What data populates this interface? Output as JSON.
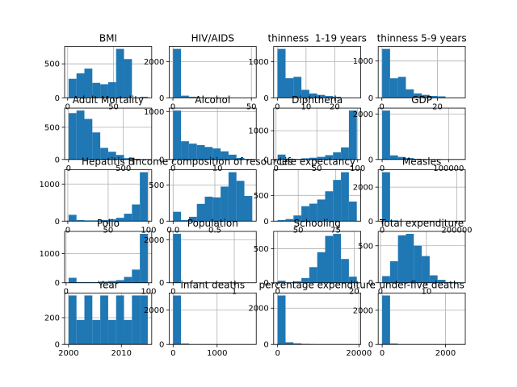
{
  "chart_data": [
    {
      "type": "histogram",
      "title": "BMI",
      "bins": [
        1,
        9.63,
        18.26,
        26.89,
        35.52,
        44.15,
        52.78,
        61.41,
        70.04,
        78.67,
        87.3
      ],
      "values": [
        280,
        360,
        430,
        220,
        200,
        230,
        720,
        570,
        5,
        15
      ],
      "color": "#1f77b4",
      "xlim": [
        -3.3,
        91.6
      ],
      "ylim": [
        0,
        756
      ],
      "xticks": [
        0,
        50
      ],
      "yticks": [
        0,
        500
      ],
      "grid": true
    },
    {
      "type": "histogram",
      "title": "HIV/AIDS",
      "bins": [
        0.1,
        5.15,
        10.2,
        15.25,
        20.3,
        25.35,
        30.4,
        35.45,
        40.5,
        45.55,
        50.6
      ],
      "values": [
        2700,
        120,
        60,
        30,
        20,
        10,
        5,
        5,
        3,
        2
      ],
      "color": "#1f77b4",
      "xlim": [
        -2.4,
        53.1
      ],
      "ylim": [
        0,
        2835
      ],
      "xticks": [
        0,
        50
      ],
      "yticks": [
        0,
        2000
      ],
      "grid": true
    },
    {
      "type": "histogram",
      "title": "thinness  1-19 years",
      "bins": [
        0.1,
        2.86,
        5.62,
        8.38,
        11.14,
        13.9,
        16.66,
        19.42,
        22.18,
        24.94,
        27.7
      ],
      "values": [
        1350,
        540,
        580,
        220,
        120,
        80,
        50,
        30,
        5,
        5
      ],
      "color": "#1f77b4",
      "xlim": [
        -1.28,
        29.08
      ],
      "ylim": [
        0,
        1418
      ],
      "xticks": [
        0,
        10,
        20
      ],
      "yticks": [
        0,
        1000
      ],
      "grid": true
    },
    {
      "type": "histogram",
      "title": "thinness 5-9 years",
      "bins": [
        0.1,
        2.95,
        5.8,
        8.65,
        11.5,
        14.35,
        17.2,
        20.05,
        22.9,
        25.75,
        28.6
      ],
      "values": [
        1330,
        530,
        570,
        230,
        120,
        80,
        50,
        40,
        5,
        5
      ],
      "color": "#1f77b4",
      "xlim": [
        -1.33,
        30.03
      ],
      "ylim": [
        0,
        1397
      ],
      "xticks": [
        0,
        20
      ],
      "yticks": [
        0,
        1000
      ],
      "grid": true
    },
    {
      "type": "histogram",
      "title": "Adult Mortality",
      "bins": [
        1,
        73.2,
        145.4,
        217.6,
        289.8,
        362,
        434.2,
        506.4,
        578.6,
        650.8,
        723
      ],
      "values": [
        720,
        760,
        630,
        420,
        180,
        120,
        70,
        20,
        10,
        5
      ],
      "color": "#1f77b4",
      "xlim": [
        -35.1,
        759.1
      ],
      "ylim": [
        0,
        798
      ],
      "xticks": [
        0,
        500
      ],
      "yticks": [
        0,
        500
      ],
      "grid": true
    },
    {
      "type": "histogram",
      "title": "Alcohol",
      "bins": [
        0.01,
        1.796,
        3.582,
        5.368,
        7.154,
        8.94,
        10.726,
        12.512,
        14.298,
        16.084,
        17.87
      ],
      "values": [
        1020,
        380,
        330,
        300,
        260,
        230,
        170,
        100,
        30,
        10
      ],
      "color": "#1f77b4",
      "xlim": [
        -0.88,
        18.76
      ],
      "ylim": [
        0,
        1071
      ],
      "xticks": [
        0,
        10
      ],
      "yticks": [
        0,
        1000
      ],
      "grid": true
    },
    {
      "type": "histogram",
      "title": "Diphtheria",
      "bins": [
        2,
        11.7,
        21.4,
        31.1,
        40.8,
        50.5,
        60.2,
        69.9,
        79.6,
        89.3,
        99
      ],
      "values": [
        170,
        30,
        20,
        40,
        60,
        90,
        150,
        250,
        420,
        1700
      ],
      "color": "#1f77b4",
      "xlim": [
        -2.85,
        103.85
      ],
      "ylim": [
        0,
        1785
      ],
      "xticks": [
        0,
        50,
        100
      ],
      "yticks": [
        0,
        1000
      ],
      "grid": true
    },
    {
      "type": "histogram",
      "title": "GDP",
      "bins": [
        2,
        11919,
        23836,
        35753,
        47670,
        59587,
        71504,
        83421,
        95338,
        107255,
        119172
      ],
      "values": [
        2150,
        180,
        110,
        60,
        30,
        15,
        10,
        5,
        3,
        2
      ],
      "color": "#1f77b4",
      "xlim": [
        -5957,
        125131
      ],
      "ylim": [
        0,
        2258
      ],
      "xticks": [
        0,
        100000
      ],
      "yticks": [
        0,
        2000
      ],
      "grid": true
    },
    {
      "type": "histogram",
      "title": "Hepatitis B",
      "bins": [
        1,
        10.8,
        20.6,
        30.4,
        40.2,
        50,
        59.8,
        69.6,
        79.4,
        89.2,
        99
      ],
      "values": [
        170,
        30,
        20,
        20,
        30,
        50,
        90,
        200,
        450,
        1320
      ],
      "color": "#1f77b4",
      "xlim": [
        -3.9,
        103.9
      ],
      "ylim": [
        0,
        1386
      ],
      "xticks": [
        0,
        50,
        100
      ],
      "yticks": [
        0,
        1000
      ],
      "grid": true
    },
    {
      "type": "histogram",
      "title": "Income composition of resources",
      "bins": [
        0,
        0.0948,
        0.1896,
        0.2844,
        0.3792,
        0.474,
        0.5688,
        0.6636,
        0.7584,
        0.8532,
        0.948
      ],
      "values": [
        130,
        15,
        60,
        240,
        340,
        330,
        480,
        680,
        560,
        350
      ],
      "color": "#1f77b4",
      "xlim": [
        -0.0474,
        0.9954
      ],
      "ylim": [
        0,
        714
      ],
      "xticks": [
        {
          "value": 0,
          "label": "0.0"
        },
        0.5
      ],
      "yticks": [
        0,
        500
      ],
      "grid": true
    },
    {
      "type": "histogram",
      "title": "Life expectancy",
      "bins": [
        36.3,
        41.57,
        46.84,
        52.11,
        57.38,
        62.65,
        67.92,
        73.19,
        78.46,
        83.73,
        89
      ],
      "values": [
        20,
        40,
        110,
        290,
        340,
        420,
        580,
        800,
        950,
        380
      ],
      "color": "#1f77b4",
      "xlim": [
        33.67,
        91.64
      ],
      "ylim": [
        0,
        998
      ],
      "xticks": [
        50,
        75
      ],
      "yticks": [
        0,
        500
      ],
      "grid": true
    },
    {
      "type": "histogram",
      "title": "Measles",
      "bins": [
        0,
        21218,
        42437,
        63655,
        84873,
        106092,
        127310,
        148528,
        169746,
        190965,
        212183
      ],
      "values": [
        2880,
        40,
        10,
        5,
        3,
        2,
        2,
        1,
        1,
        1
      ],
      "color": "#1f77b4",
      "xlim": [
        -10609,
        222792
      ],
      "ylim": [
        0,
        3024
      ],
      "xticks": [
        0,
        200000
      ],
      "yticks": [
        0,
        2000
      ],
      "grid": true
    },
    {
      "type": "histogram",
      "title": "Polio",
      "bins": [
        3,
        12.6,
        22.2,
        31.8,
        41.4,
        51,
        60.6,
        70.2,
        79.8,
        89.4,
        99
      ],
      "values": [
        170,
        20,
        20,
        20,
        40,
        60,
        90,
        200,
        450,
        1670
      ],
      "color": "#1f77b4",
      "xlim": [
        -1.8,
        103.8
      ],
      "ylim": [
        0,
        1754
      ],
      "xticks": [
        0,
        100
      ],
      "yticks": [
        0,
        1000
      ],
      "grid": true
    },
    {
      "type": "histogram",
      "title": "Population",
      "bins": [
        34,
        129385960,
        258771886,
        388157812,
        517543738,
        646929664,
        776315590,
        905701516,
        1035087442,
        1164473368,
        1293859294
      ],
      "values": [
        2270,
        2,
        1,
        0,
        0,
        0,
        0,
        0,
        0,
        1
      ],
      "color": "#1f77b4",
      "xlim": [
        -64692930,
        1358552258
      ],
      "ylim": [
        0,
        2384
      ],
      "xticks": [
        0,
        {
          "value": 1000000000,
          "label": "1"
        }
      ],
      "yticks": [
        0,
        2000
      ],
      "grid": true
    },
    {
      "type": "histogram",
      "title": "Schooling",
      "bins": [
        0,
        2.07,
        4.14,
        6.21,
        8.28,
        10.35,
        12.42,
        14.49,
        16.56,
        18.63,
        20.7
      ],
      "values": [
        30,
        5,
        20,
        70,
        230,
        450,
        690,
        720,
        350,
        90
      ],
      "color": "#1f77b4",
      "xlim": [
        -1.035,
        21.735
      ],
      "ylim": [
        0,
        756
      ],
      "xticks": [
        0,
        20
      ],
      "yticks": [
        0,
        500
      ],
      "grid": true
    },
    {
      "type": "histogram",
      "title": "Total expenditure",
      "bins": [
        0.37,
        2.093,
        3.816,
        5.539,
        7.262,
        8.985,
        10.708,
        12.431,
        14.154,
        15.877,
        17.6
      ],
      "values": [
        90,
        290,
        640,
        660,
        500,
        360,
        100,
        40,
        10,
        5
      ],
      "color": "#1f77b4",
      "xlim": [
        -0.49,
        18.46
      ],
      "ylim": [
        0,
        693
      ],
      "xticks": [
        0,
        10
      ],
      "yticks": [
        0,
        500
      ],
      "grid": true
    },
    {
      "type": "histogram",
      "title": "Year",
      "bins": [
        2000,
        2001.5,
        2003,
        2004.5,
        2006,
        2007.5,
        2009,
        2010.5,
        2012,
        2013.5,
        2015
      ],
      "values": [
        366,
        183,
        366,
        183,
        366,
        183,
        366,
        183,
        366,
        366
      ],
      "color": "#1f77b4",
      "xlim": [
        1999.25,
        2015.75
      ],
      "ylim": [
        0,
        384
      ],
      "xticks": [
        2000,
        2010
      ],
      "yticks": [
        0,
        200
      ],
      "grid": true
    },
    {
      "type": "histogram",
      "title": "infant deaths",
      "bins": [
        0,
        180,
        360,
        540,
        720,
        900,
        1080,
        1260,
        1440,
        1620,
        1800
      ],
      "values": [
        2850,
        50,
        10,
        5,
        3,
        2,
        3,
        2,
        2,
        6
      ],
      "color": "#1f77b4",
      "xlim": [
        -90,
        1890
      ],
      "ylim": [
        0,
        2993
      ],
      "xticks": [
        0,
        1000
      ],
      "yticks": [
        0,
        2000
      ],
      "grid": true
    },
    {
      "type": "histogram",
      "title": "percentage expenditure",
      "bins": [
        0,
        1948,
        3896,
        5844,
        7792,
        9740,
        11688,
        13636,
        15584,
        17532,
        19480
      ],
      "values": [
        2700,
        120,
        60,
        30,
        15,
        5,
        5,
        2,
        1,
        1
      ],
      "color": "#1f77b4",
      "xlim": [
        -974,
        20454
      ],
      "ylim": [
        0,
        2835
      ],
      "xticks": [
        0,
        20000
      ],
      "yticks": [
        0,
        2000
      ],
      "grid": true
    },
    {
      "type": "histogram",
      "title": "under-five deaths",
      "bins": [
        0,
        250,
        500,
        750,
        1000,
        1250,
        1500,
        1750,
        2000,
        2250,
        2500
      ],
      "values": [
        2860,
        50,
        10,
        5,
        3,
        3,
        2,
        2,
        2,
        1
      ],
      "color": "#1f77b4",
      "xlim": [
        -125,
        2625
      ],
      "ylim": [
        0,
        3003
      ],
      "xticks": [
        0,
        2000
      ],
      "yticks": [
        0,
        2000
      ],
      "grid": true
    }
  ]
}
